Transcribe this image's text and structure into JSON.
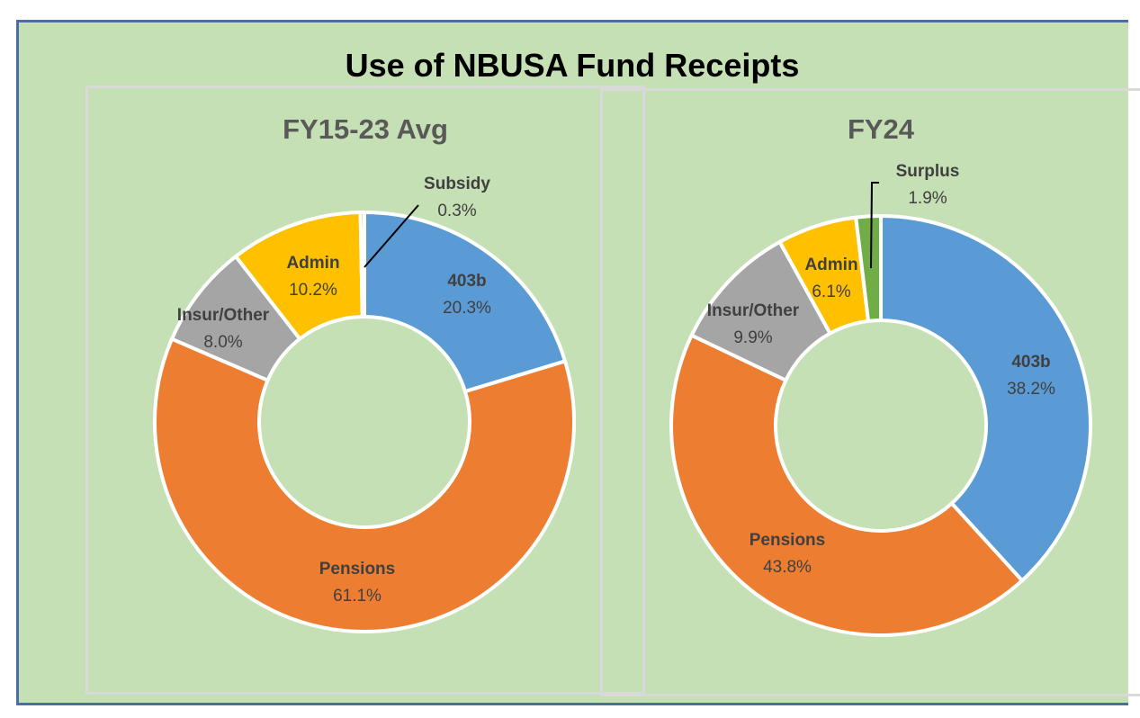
{
  "title": "Use of NBUSA Fund Receipts",
  "chart_data": [
    {
      "type": "donut",
      "title": "FY15-23 Avg",
      "series": [
        {
          "name": "403b",
          "value": 20.3,
          "label": "20.3%",
          "color": "#5b9bd5"
        },
        {
          "name": "Pensions",
          "value": 61.1,
          "label": "61.1%",
          "color": "#ed7d31"
        },
        {
          "name": "Insur/Other",
          "value": 8.0,
          "label": "8.0%",
          "color": "#a5a5a5"
        },
        {
          "name": "Admin",
          "value": 10.2,
          "label": "10.2%",
          "color": "#ffc000"
        },
        {
          "name": "Subsidy",
          "value": 0.3,
          "label": "0.3%",
          "color": "#70ad47"
        }
      ]
    },
    {
      "type": "donut",
      "title": "FY24",
      "series": [
        {
          "name": "403b",
          "value": 38.2,
          "label": "38.2%",
          "color": "#5b9bd5"
        },
        {
          "name": "Pensions",
          "value": 43.8,
          "label": "43.8%",
          "color": "#ed7d31"
        },
        {
          "name": "Insur/Other",
          "value": 9.9,
          "label": "9.9%",
          "color": "#a5a5a5"
        },
        {
          "name": "Admin",
          "value": 6.1,
          "label": "6.1%",
          "color": "#ffc000"
        },
        {
          "name": "Surplus",
          "value": 1.9,
          "label": "1.9%",
          "color": "#70ad47"
        }
      ]
    }
  ]
}
